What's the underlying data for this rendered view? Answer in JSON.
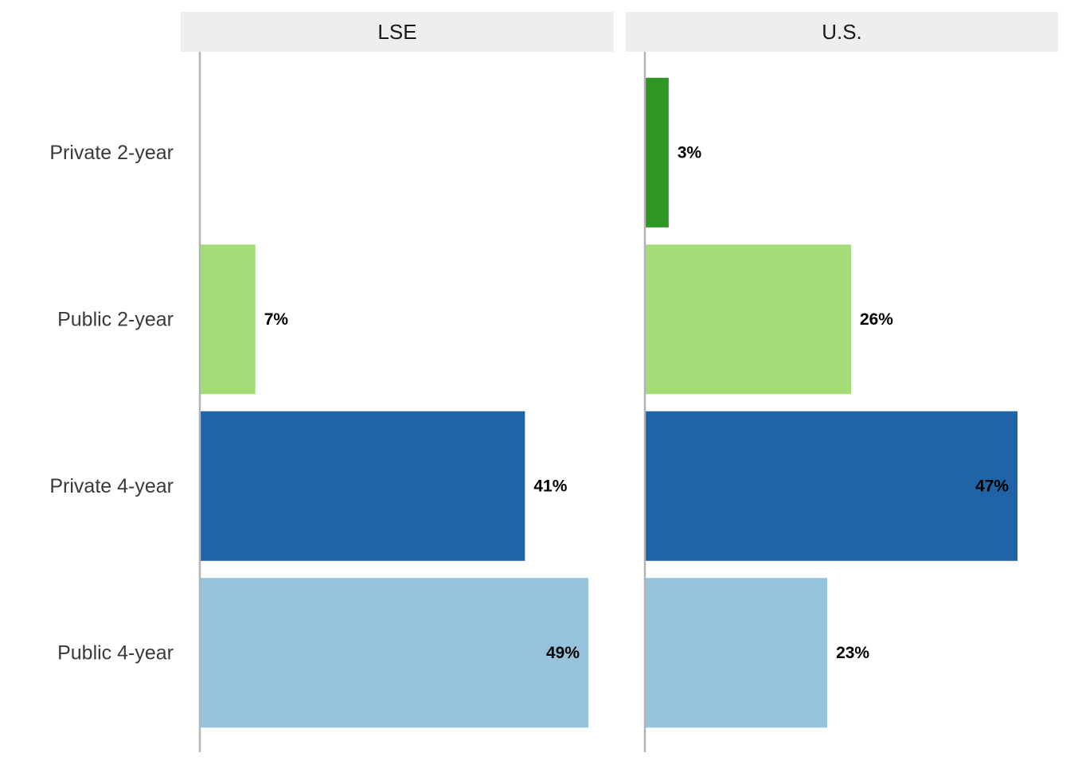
{
  "chart_data": {
    "type": "bar",
    "orientation": "horizontal",
    "facets": [
      "LSE",
      "U.S."
    ],
    "categories": [
      "Private 2-year",
      "Public 2-year",
      "Private 4-year",
      "Public 4-year"
    ],
    "category_colors": {
      "Private 2-year": "#2e9623",
      "Public 2-year": "#a5db79",
      "Private 4-year": "#1f64a6",
      "Public 4-year": "#97c2db"
    },
    "series": [
      {
        "facet": "LSE",
        "values": [
          null,
          7,
          41,
          49
        ],
        "labels": [
          "",
          "7%",
          "41%",
          "49%"
        ]
      },
      {
        "facet": "U.S.",
        "values": [
          3,
          26,
          47,
          23
        ],
        "labels": [
          "3%",
          "26%",
          "47%",
          "23%"
        ]
      }
    ],
    "xlim": [
      0,
      50
    ],
    "grid": false,
    "legend": "none",
    "strip_color": "#eeeeee",
    "axis_line_color": "#b3b3b3"
  }
}
